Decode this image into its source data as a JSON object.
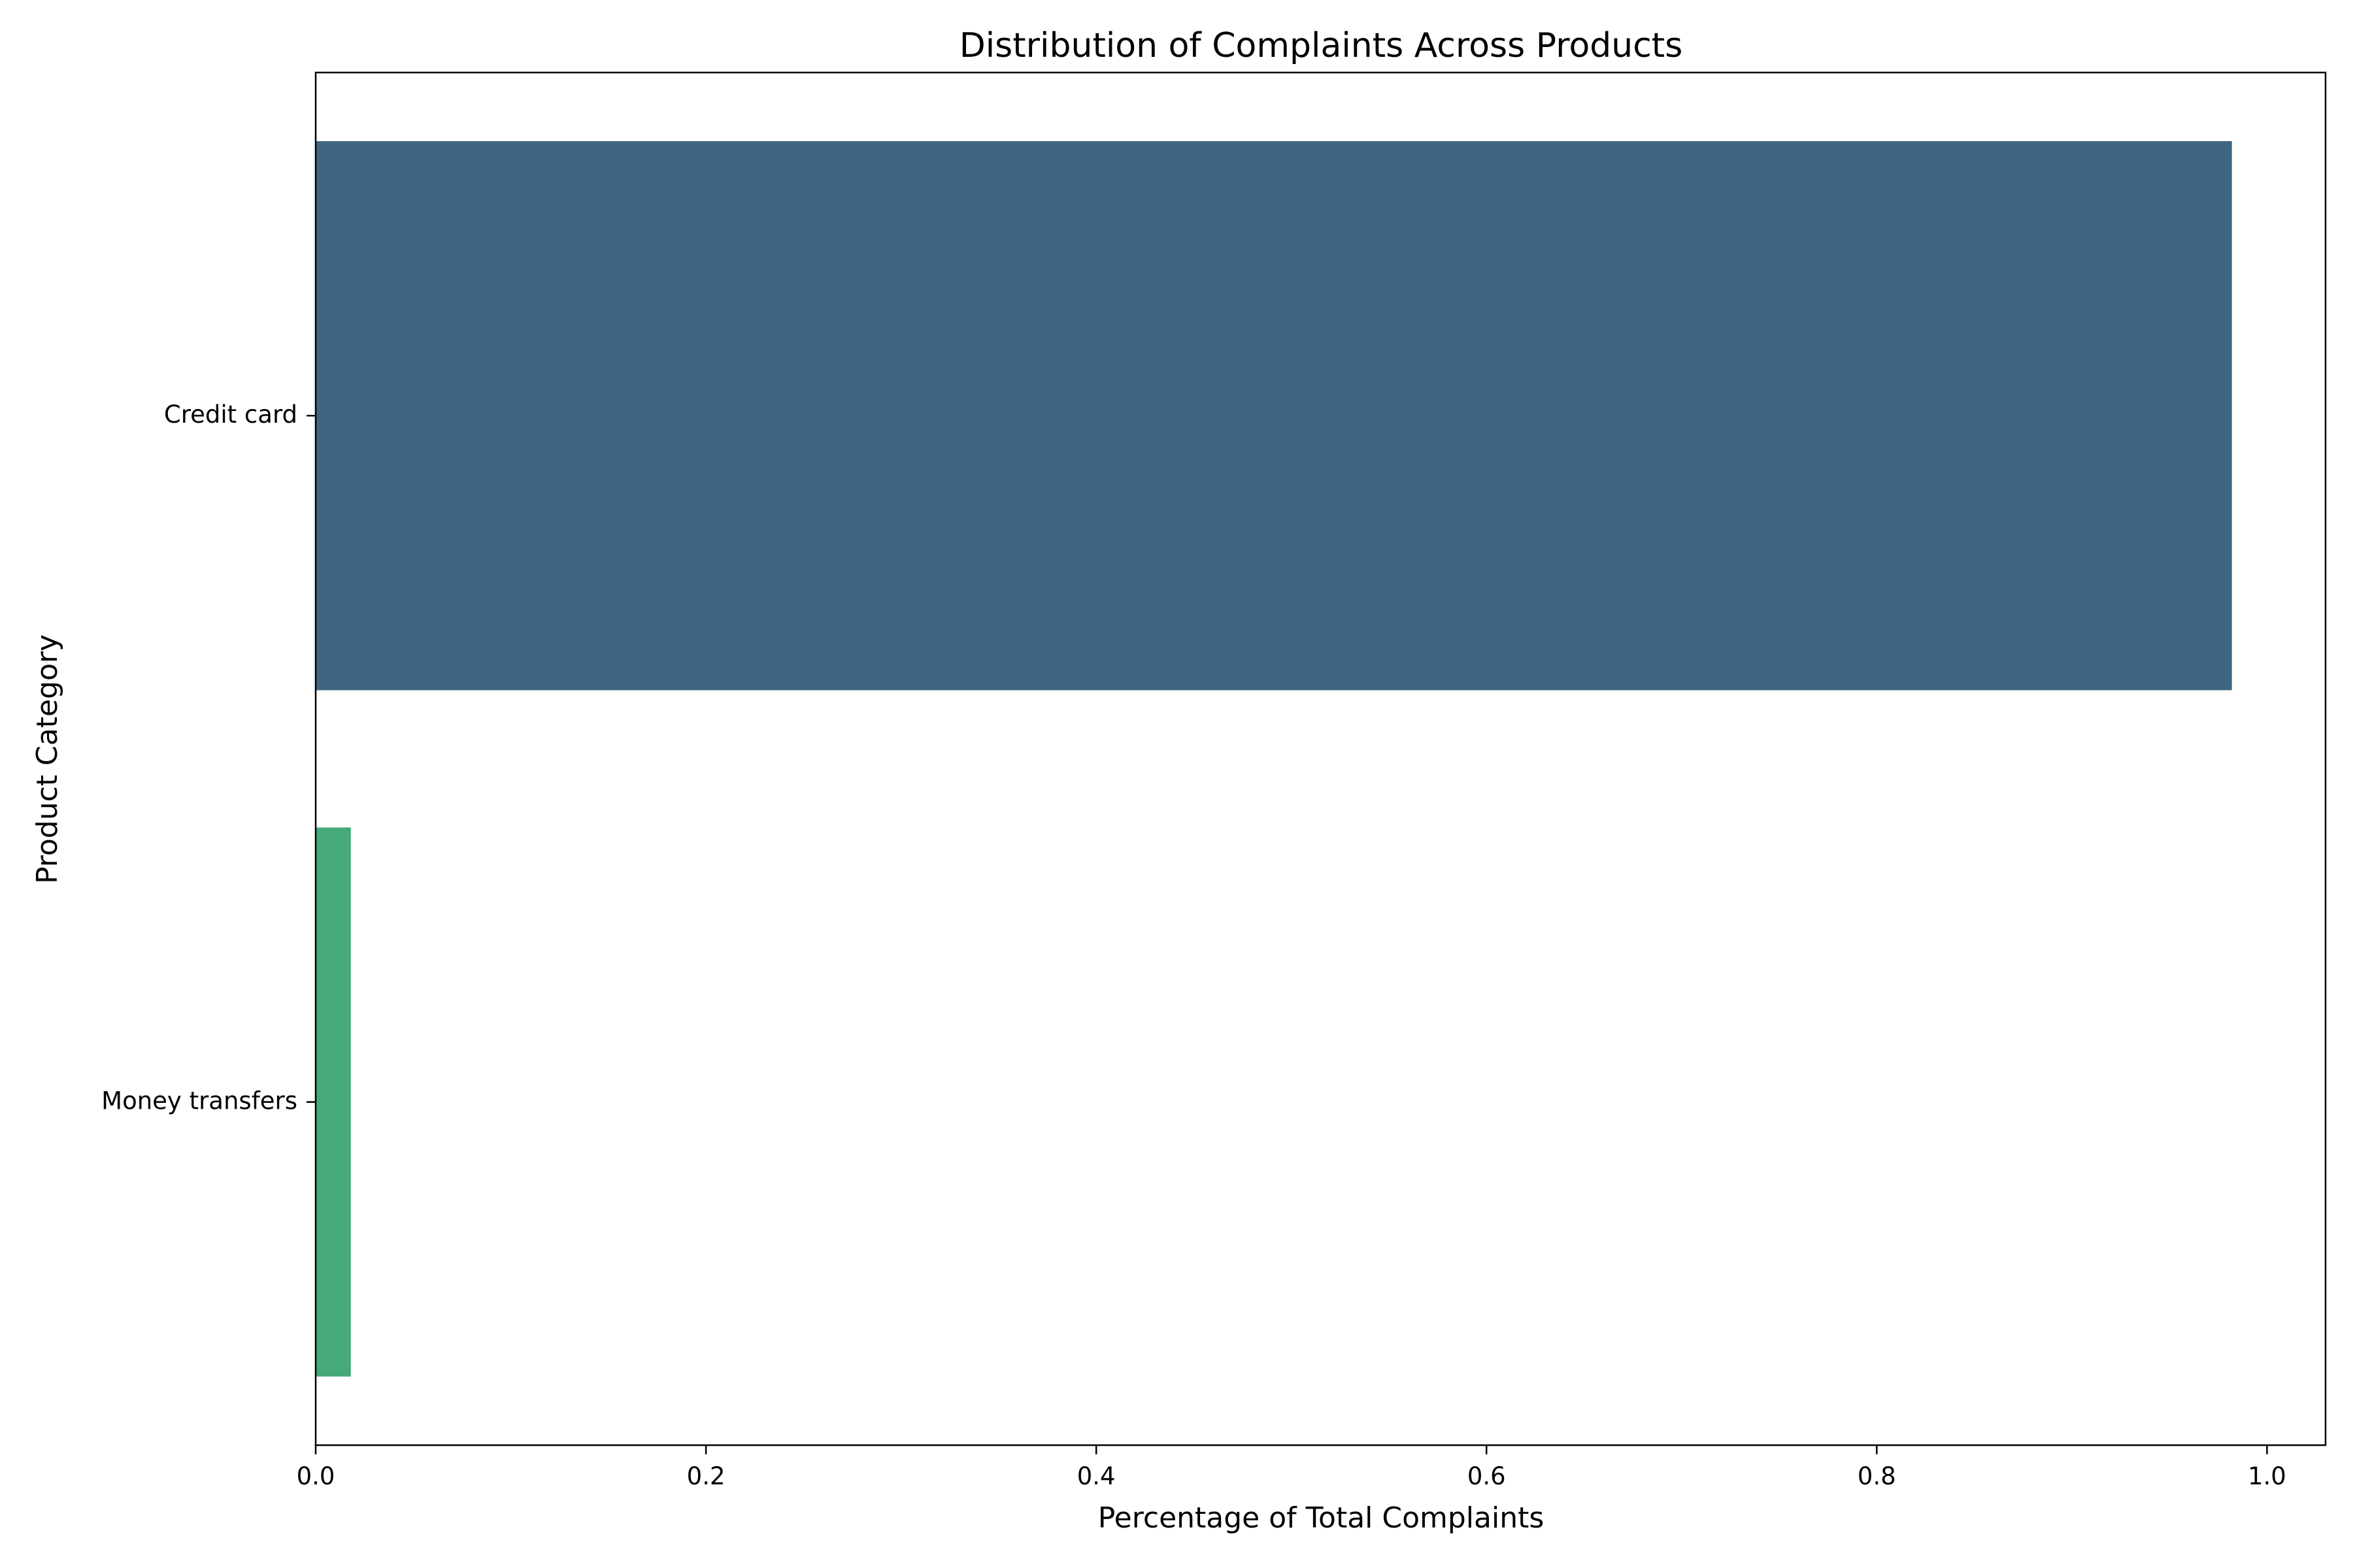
{
  "chart_data": {
    "type": "bar",
    "orientation": "horizontal",
    "title": "Distribution of Complaints Across Products",
    "xlabel": "Percentage of Total Complaints",
    "ylabel": "Product Category",
    "categories": [
      "Credit card",
      "Money transfers"
    ],
    "values": [
      0.982,
      0.018
    ],
    "colors": [
      "#3e6682",
      "#46a978"
    ],
    "xlim": [
      0.0,
      1.03
    ],
    "xticks": [
      0.0,
      0.2,
      0.4,
      0.6,
      0.8,
      1.0
    ],
    "xtick_labels": [
      "0.0",
      "0.2",
      "0.4",
      "0.6",
      "0.8",
      "1.0"
    ],
    "grid": false,
    "legend": "none"
  }
}
